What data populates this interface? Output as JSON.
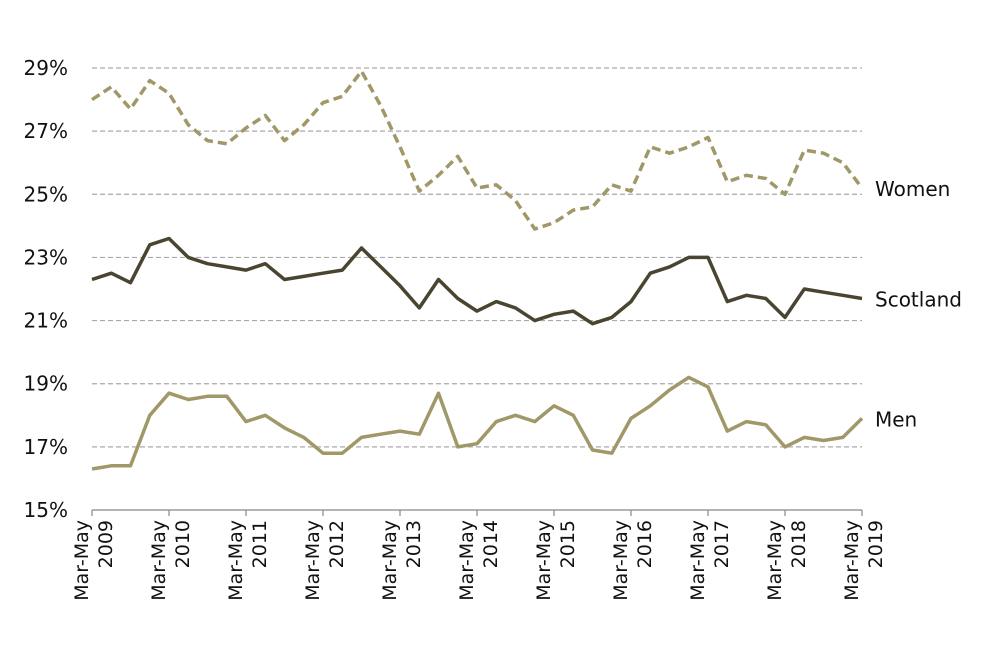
{
  "chart_data": {
    "type": "line",
    "title": "",
    "xlabel": "",
    "ylabel": "",
    "ylim": [
      15,
      29
    ],
    "yticks": [
      "15%",
      "17%",
      "19%",
      "21%",
      "23%",
      "25%",
      "27%",
      "29%"
    ],
    "grid": true,
    "x_tick_labels": [
      {
        "period": "Mar-May",
        "year": "2009"
      },
      {
        "period": "Mar-May",
        "year": "2010"
      },
      {
        "period": "Mar-May",
        "year": "2011"
      },
      {
        "period": "Mar-May",
        "year": "2012"
      },
      {
        "period": "Mar-May",
        "year": "2013"
      },
      {
        "period": "Mar-May",
        "year": "2014"
      },
      {
        "period": "Mar-May",
        "year": "2015"
      },
      {
        "period": "Mar-May",
        "year": "2016"
      },
      {
        "period": "Mar-May",
        "year": "2017"
      },
      {
        "period": "Mar-May",
        "year": "2018"
      },
      {
        "period": "Mar-May",
        "year": "2019"
      }
    ],
    "series": [
      {
        "name": "Women",
        "color": "#a09868",
        "style": "dashed",
        "values": [
          28.0,
          28.4,
          27.7,
          28.6,
          28.2,
          27.2,
          26.7,
          26.6,
          27.1,
          27.5,
          26.7,
          27.2,
          27.9,
          28.1,
          28.9,
          27.8,
          26.5,
          25.1,
          25.6,
          26.2,
          25.2,
          25.3,
          24.8,
          23.9,
          24.1,
          24.5,
          24.6,
          25.3,
          25.1,
          26.5,
          26.3,
          26.5,
          26.8,
          25.4,
          25.6,
          25.5,
          25.0,
          26.4,
          26.3,
          26.0,
          25.2
        ]
      },
      {
        "name": "Scotland",
        "color": "#4a4530",
        "style": "solid",
        "values": [
          22.3,
          22.5,
          22.2,
          23.4,
          23.6,
          23.0,
          22.8,
          22.7,
          22.6,
          22.8,
          22.3,
          22.4,
          22.5,
          22.6,
          23.3,
          22.7,
          22.1,
          21.4,
          22.3,
          21.7,
          21.3,
          21.6,
          21.4,
          21.0,
          21.2,
          21.3,
          20.9,
          21.1,
          21.6,
          22.5,
          22.7,
          23.0,
          23.0,
          21.6,
          21.8,
          21.7,
          21.1,
          22.0,
          21.9,
          21.8,
          21.7
        ]
      },
      {
        "name": "Men",
        "color": "#a09868",
        "style": "solid",
        "values": [
          16.3,
          16.4,
          16.4,
          18.0,
          18.7,
          18.5,
          18.6,
          18.6,
          17.8,
          18.0,
          17.6,
          17.3,
          16.8,
          16.8,
          17.3,
          17.4,
          17.5,
          17.4,
          18.7,
          17.0,
          17.1,
          17.8,
          18.0,
          17.8,
          18.3,
          18.0,
          16.9,
          16.8,
          17.9,
          18.3,
          18.8,
          19.2,
          18.9,
          17.5,
          17.8,
          17.7,
          17.0,
          17.3,
          17.2,
          17.3,
          17.9
        ]
      }
    ]
  }
}
